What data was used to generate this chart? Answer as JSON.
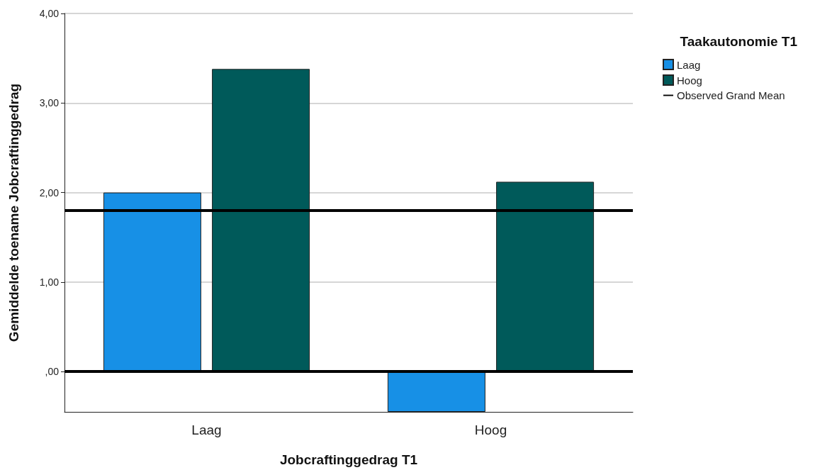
{
  "chart_data": {
    "type": "bar",
    "xlabel": "Jobcraftinggedrag T1",
    "ylabel": "Gemiddelde toename Jobcraftinggedrag",
    "legend_title": "Taakautonomie T1",
    "categories": [
      "Laag",
      "Hoog"
    ],
    "series": [
      {
        "name": "Laag",
        "color": "#1790e6",
        "values": [
          2.0,
          -0.45
        ]
      },
      {
        "name": "Hoog",
        "color": "#005a5a",
        "values": [
          3.38,
          2.12
        ]
      }
    ],
    "ylim": [
      -0.45,
      4
    ],
    "yticks": [
      {
        "value": 0,
        "label": ",00"
      },
      {
        "value": 1,
        "label": "1,00"
      },
      {
        "value": 2,
        "label": "2,00"
      },
      {
        "value": 3,
        "label": "3,00"
      },
      {
        "value": 4,
        "label": "4,00"
      }
    ],
    "ref_lines": [
      {
        "axis": "y",
        "value": 0,
        "color": "#000000"
      },
      {
        "axis": "y",
        "value": 1.8,
        "label": "Observed Grand Mean",
        "color": "#000000"
      }
    ],
    "grid": "y",
    "legend": "top right"
  }
}
